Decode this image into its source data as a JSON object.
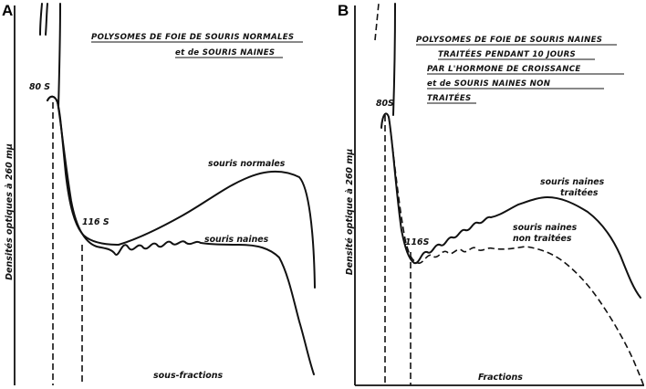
{
  "chart_data": [
    {
      "type": "line",
      "panel_label": "A",
      "title": [
        "POLYSOMES DE FOIE DE SOURIS NORMALES",
        "et de SOURIS NAINES"
      ],
      "ylabel": "Densités optiques à 260 mμ",
      "xlabel": "sous-fractions",
      "annotations": [
        "80 S",
        "116 S"
      ],
      "series": [
        {
          "name": "souris normales",
          "style": "solid",
          "y_profile": [
            0.0,
            0.71,
            0.72,
            0.69,
            0.62,
            0.52,
            0.43,
            0.36,
            0.33,
            0.31,
            0.3,
            0.29,
            0.295,
            0.3,
            0.31,
            0.32,
            0.33,
            0.35,
            0.36,
            0.38,
            0.4,
            0.42,
            0.45,
            0.47,
            0.5,
            0.52,
            0.54,
            0.55,
            0.555,
            0.55,
            0.54,
            0.52,
            0.48,
            0.42,
            0.34,
            0.26,
            0.2
          ]
        },
        {
          "name": "souris naines",
          "style": "solid",
          "y_profile": [
            0.0,
            0.71,
            0.72,
            0.69,
            0.6,
            0.45,
            0.35,
            0.3,
            0.28,
            0.27,
            0.265,
            0.26,
            0.27,
            0.29,
            0.26,
            0.28,
            0.3,
            0.27,
            0.29,
            0.3,
            0.28,
            0.29,
            0.3,
            0.29,
            0.3,
            0.3,
            0.3,
            0.3,
            0.29,
            0.28,
            0.27,
            0.25,
            0.22,
            0.16,
            0.1,
            0.04,
            0.0
          ]
        }
      ],
      "reference_lines": [
        "dashed vertical at 80 S peak",
        "dashed vertical at 116 S"
      ],
      "colors": {
        "ink": "#111111",
        "background": "#ffffff"
      }
    },
    {
      "type": "line",
      "panel_label": "B",
      "title": [
        "POLYSOMES DE FOIE DE SOURIS NAINES",
        "TRAITÉES PENDANT 10 JOURS",
        "PAR L'HORMONE DE CROISSANCE",
        "et de SOURIS NAINES NON",
        "TRAITÉES"
      ],
      "ylabel": "Densité optique à 260 mμ",
      "xlabel": "Fractions",
      "annotations": [
        "80S",
        "116S"
      ],
      "series": [
        {
          "name": "souris naines traitées",
          "style": "solid",
          "y_profile": [
            0.0,
            0.7,
            0.72,
            0.65,
            0.5,
            0.35,
            0.3,
            0.29,
            0.33,
            0.3,
            0.34,
            0.32,
            0.36,
            0.35,
            0.38,
            0.37,
            0.4,
            0.4,
            0.42,
            0.43,
            0.45,
            0.46,
            0.47,
            0.48,
            0.49,
            0.5,
            0.5,
            0.49,
            0.47,
            0.44,
            0.4,
            0.35,
            0.3,
            0.26
          ]
        },
        {
          "name": "souris naines non traitées",
          "style": "dashed",
          "y_profile": [
            0.0,
            0.7,
            0.72,
            0.65,
            0.48,
            0.33,
            0.28,
            0.27,
            0.3,
            0.27,
            0.29,
            0.26,
            0.28,
            0.26,
            0.28,
            0.27,
            0.29,
            0.28,
            0.29,
            0.29,
            0.3,
            0.29,
            0.3,
            0.29,
            0.28,
            0.27,
            0.25,
            0.22,
            0.18,
            0.12,
            0.06,
            0.02,
            0.0
          ]
        }
      ],
      "reference_lines": [
        "dashed vertical at 80S peak",
        "dashed vertical at 116S"
      ],
      "colors": {
        "ink": "#111111",
        "background": "#ffffff"
      }
    }
  ]
}
